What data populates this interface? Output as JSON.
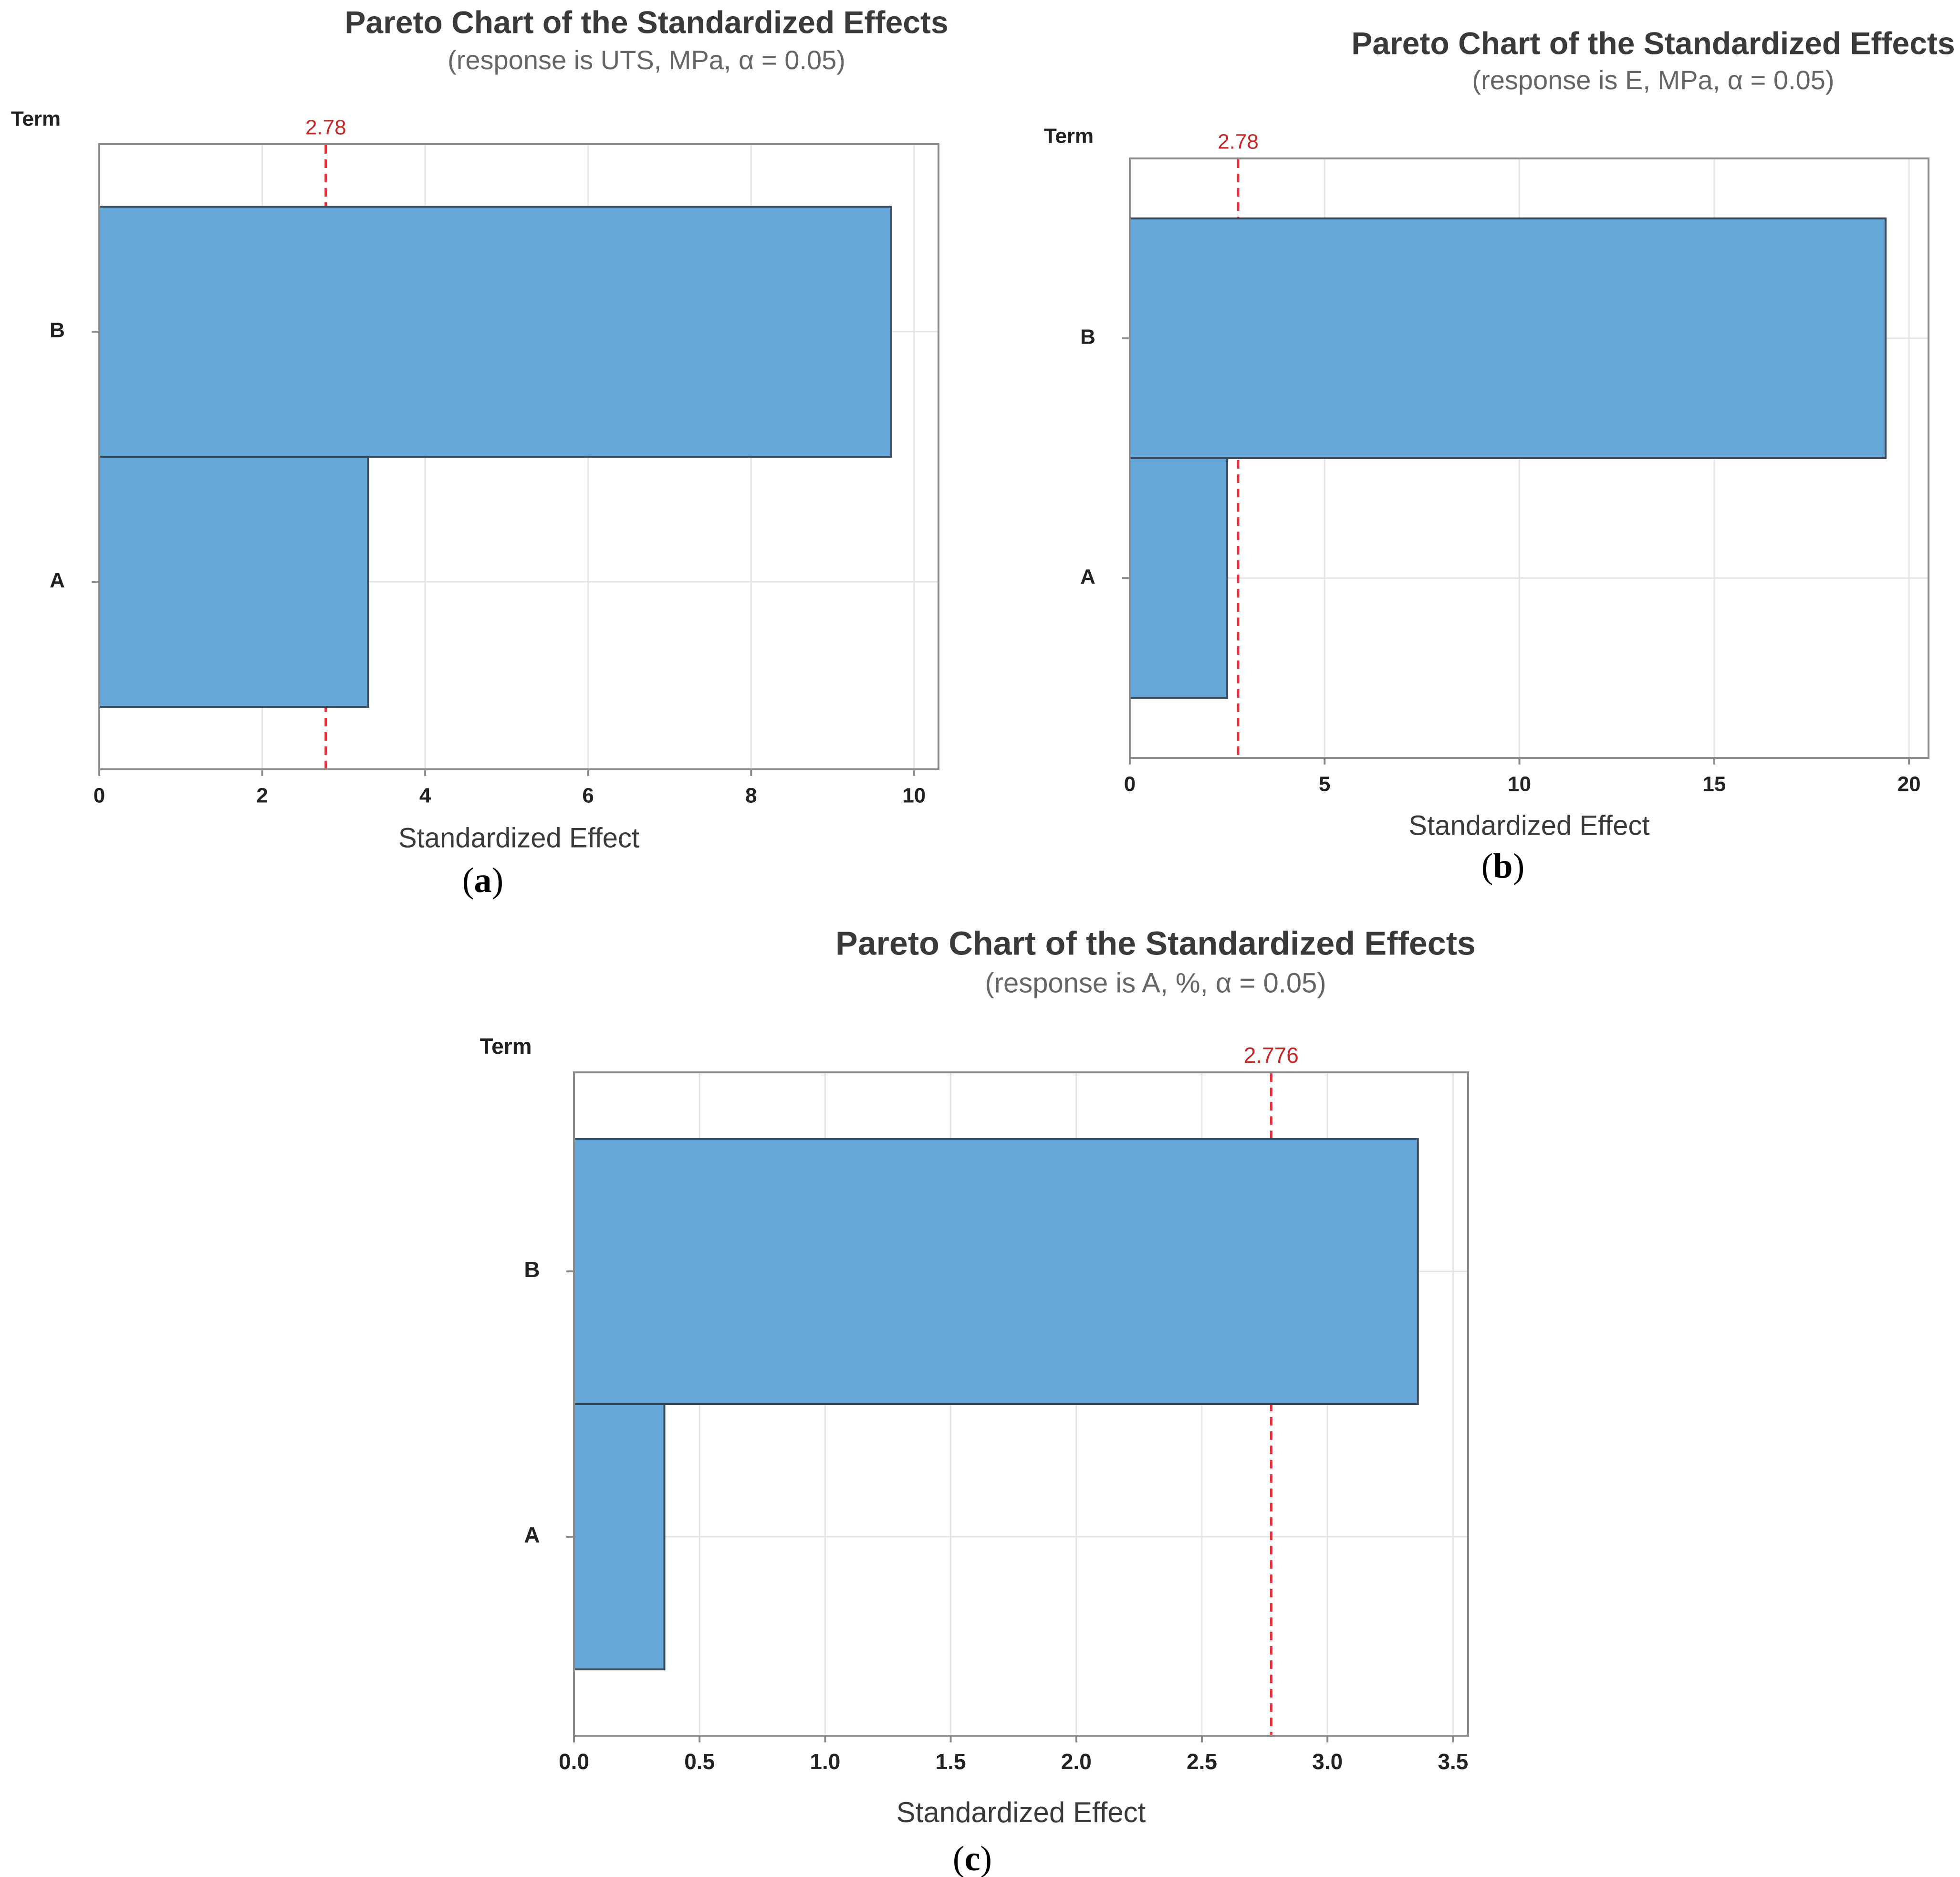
{
  "colors": {
    "bar_fill": "#67a8da",
    "bar_stroke": "#3b4a5a",
    "grid": "#e4e4e4",
    "frame": "#8c8c8c",
    "ref_line": "#e8303a",
    "ref_label": "#c62828",
    "title": "#3a3a3a",
    "subtitle": "#666666",
    "tick": "#222222"
  },
  "chart_data": [
    {
      "type": "bar",
      "orientation": "horizontal",
      "panel_label": "a",
      "title": "Pareto Chart of the Standardized Effects",
      "subtitle": "(response is UTS, MPa, α = 0.05)",
      "ylabel": "Term",
      "xlabel": "Standardized Effect",
      "categories": [
        "B",
        "A"
      ],
      "values": [
        9.72,
        3.3
      ],
      "xlim": [
        0,
        10.3
      ],
      "xticks": [
        0,
        2,
        4,
        6,
        8,
        10
      ],
      "xtick_labels": [
        "0",
        "2",
        "4",
        "6",
        "8",
        "10"
      ],
      "reference_line": {
        "value": 2.78,
        "label": "2.78"
      },
      "grid": true
    },
    {
      "type": "bar",
      "orientation": "horizontal",
      "panel_label": "b",
      "title": "Pareto Chart of the Standardized Effects",
      "subtitle": "(response is E, MPa, α = 0.05)",
      "ylabel": "Term",
      "xlabel": "Standardized Effect",
      "categories": [
        "B",
        "A"
      ],
      "values": [
        19.4,
        2.5
      ],
      "xlim": [
        0,
        20.5
      ],
      "xticks": [
        0,
        5,
        10,
        15,
        20
      ],
      "xtick_labels": [
        "0",
        "5",
        "10",
        "15",
        "20"
      ],
      "reference_line": {
        "value": 2.78,
        "label": "2.78"
      },
      "grid": true
    },
    {
      "type": "bar",
      "orientation": "horizontal",
      "panel_label": "c",
      "title": "Pareto Chart of the Standardized Effects",
      "subtitle": "(response is A, %, α = 0.05)",
      "ylabel": "Term",
      "xlabel": "Standardized Effect",
      "categories": [
        "B",
        "A"
      ],
      "values": [
        3.36,
        0.36
      ],
      "xlim": [
        0,
        3.56
      ],
      "xticks": [
        0,
        0.5,
        1.0,
        1.5,
        2.0,
        2.5,
        3.0,
        3.5
      ],
      "xtick_labels": [
        "0.0",
        "0.5",
        "1.0",
        "1.5",
        "2.0",
        "2.5",
        "3.0",
        "3.5"
      ],
      "reference_line": {
        "value": 2.776,
        "label": "2.776"
      },
      "grid": true
    }
  ]
}
